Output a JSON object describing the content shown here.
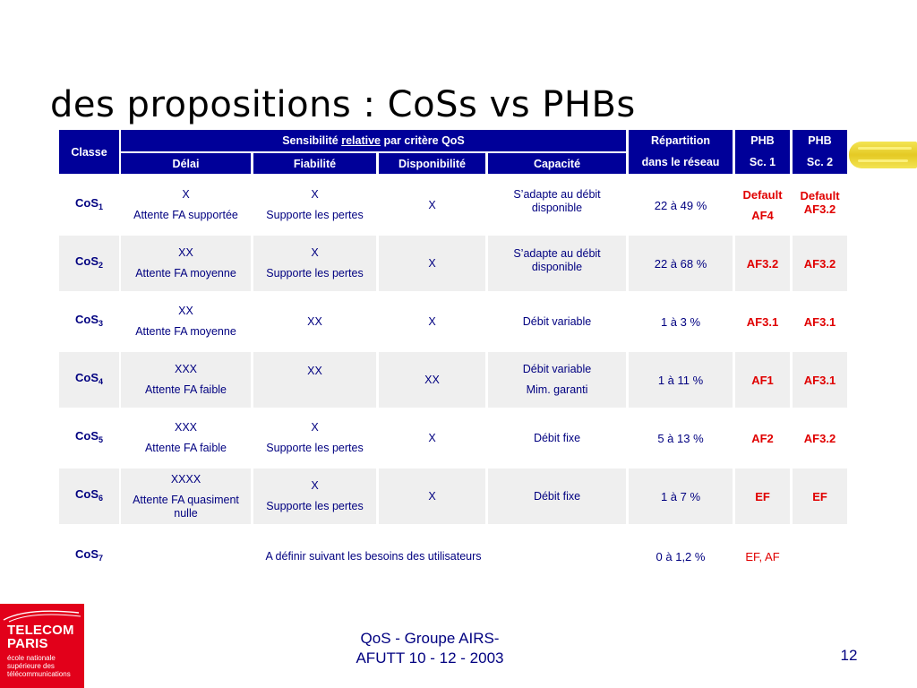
{
  "title": "des propositions : CoSs vs PHBs",
  "header": {
    "classe": "Classe",
    "sensibilite_pre": "Sensibilité ",
    "sensibilite_underline": "relative",
    "sensibilite_post": " par critère QoS",
    "repartition_1": "Répartition",
    "repartition_2": "dans le réseau",
    "phb1_1": "PHB",
    "phb1_2": "Sc. 1",
    "phb2_1": "PHB",
    "phb2_2": "Sc. 2",
    "delai": "Délai",
    "fiabilite": "Fiabilité",
    "disponibilite": "Disponibilité",
    "capacite": "Capacité"
  },
  "rows": [
    {
      "cos": "CoS",
      "sub": "1",
      "delai_1": "X",
      "delai_2": "Attente FA supportée",
      "fiab_1": "X",
      "fiab_2": "Supporte les pertes",
      "dispo": "X",
      "cap_1": "S’adapte au débit",
      "cap_2": "disponible",
      "rep": "22 à 49 %",
      "phb1_1": "Default",
      "phb1_2": "AF4",
      "phb2_1": "Default",
      "phb2_2": "AF3.2"
    },
    {
      "cos": "CoS",
      "sub": "2",
      "delai_1": "XX",
      "delai_2": "Attente FA moyenne",
      "fiab_1": "X",
      "fiab_2": "Supporte les pertes",
      "dispo": "X",
      "cap_1": "S’adapte au débit",
      "cap_2": "disponible",
      "rep": "22 à 68 %",
      "phb1": "AF3.2",
      "phb2": "AF3.2"
    },
    {
      "cos": "CoS",
      "sub": "3",
      "delai_1": "XX",
      "delai_2": "Attente FA moyenne",
      "fiab": "XX",
      "dispo": "X",
      "cap": "Débit variable",
      "rep": "1 à 3 %",
      "phb1": "AF3.1",
      "phb2": "AF3.1"
    },
    {
      "cos": "CoS",
      "sub": "4",
      "delai_1": "XXX",
      "delai_2": "Attente FA faible",
      "fiab": "XX",
      "dispo": "XX",
      "cap_1": "Débit variable",
      "cap_2": "Mim. garanti",
      "rep": "1 à 11 %",
      "phb1": "AF1",
      "phb2": "AF3.1"
    },
    {
      "cos": "CoS",
      "sub": "5",
      "delai_1": "XXX",
      "delai_2": "Attente FA faible",
      "fiab_1": "X",
      "fiab_2": "Supporte les pertes",
      "dispo": "X",
      "cap": "Débit fixe",
      "rep": "5 à 13 %",
      "phb1": "AF2",
      "phb2": "AF3.2"
    },
    {
      "cos": "CoS",
      "sub": "6",
      "delai_1": "XXXX",
      "delai_2": "Attente FA quasiment",
      "delai_3": "nulle",
      "fiab_1": "X",
      "fiab_2": "Supporte les pertes",
      "dispo": "X",
      "cap": "Débit fixe",
      "rep": "1 à 7 %",
      "phb1": "EF",
      "phb2": "EF"
    },
    {
      "cos": "CoS",
      "sub": "7",
      "span_text": "A définir suivant les besoins des utilisateurs",
      "rep": "0 à 1,2 %",
      "phb": "EF, AF"
    }
  ],
  "logo": {
    "name_1": "TELECOM",
    "name_2": "PARIS",
    "sub_1": "école nationale",
    "sub_2": "supérieure des",
    "sub_3": "télécommunications"
  },
  "footer": {
    "line_1": "QoS - Groupe AIRS-",
    "line_2": "AFUTT 10 - 12 - 2003"
  },
  "page_number": "12",
  "colors": {
    "header_bg": "#000099",
    "text": "#000080",
    "accent_red": "#e00000",
    "row_shade": "#efefef",
    "logo_red": "#e2001a"
  }
}
